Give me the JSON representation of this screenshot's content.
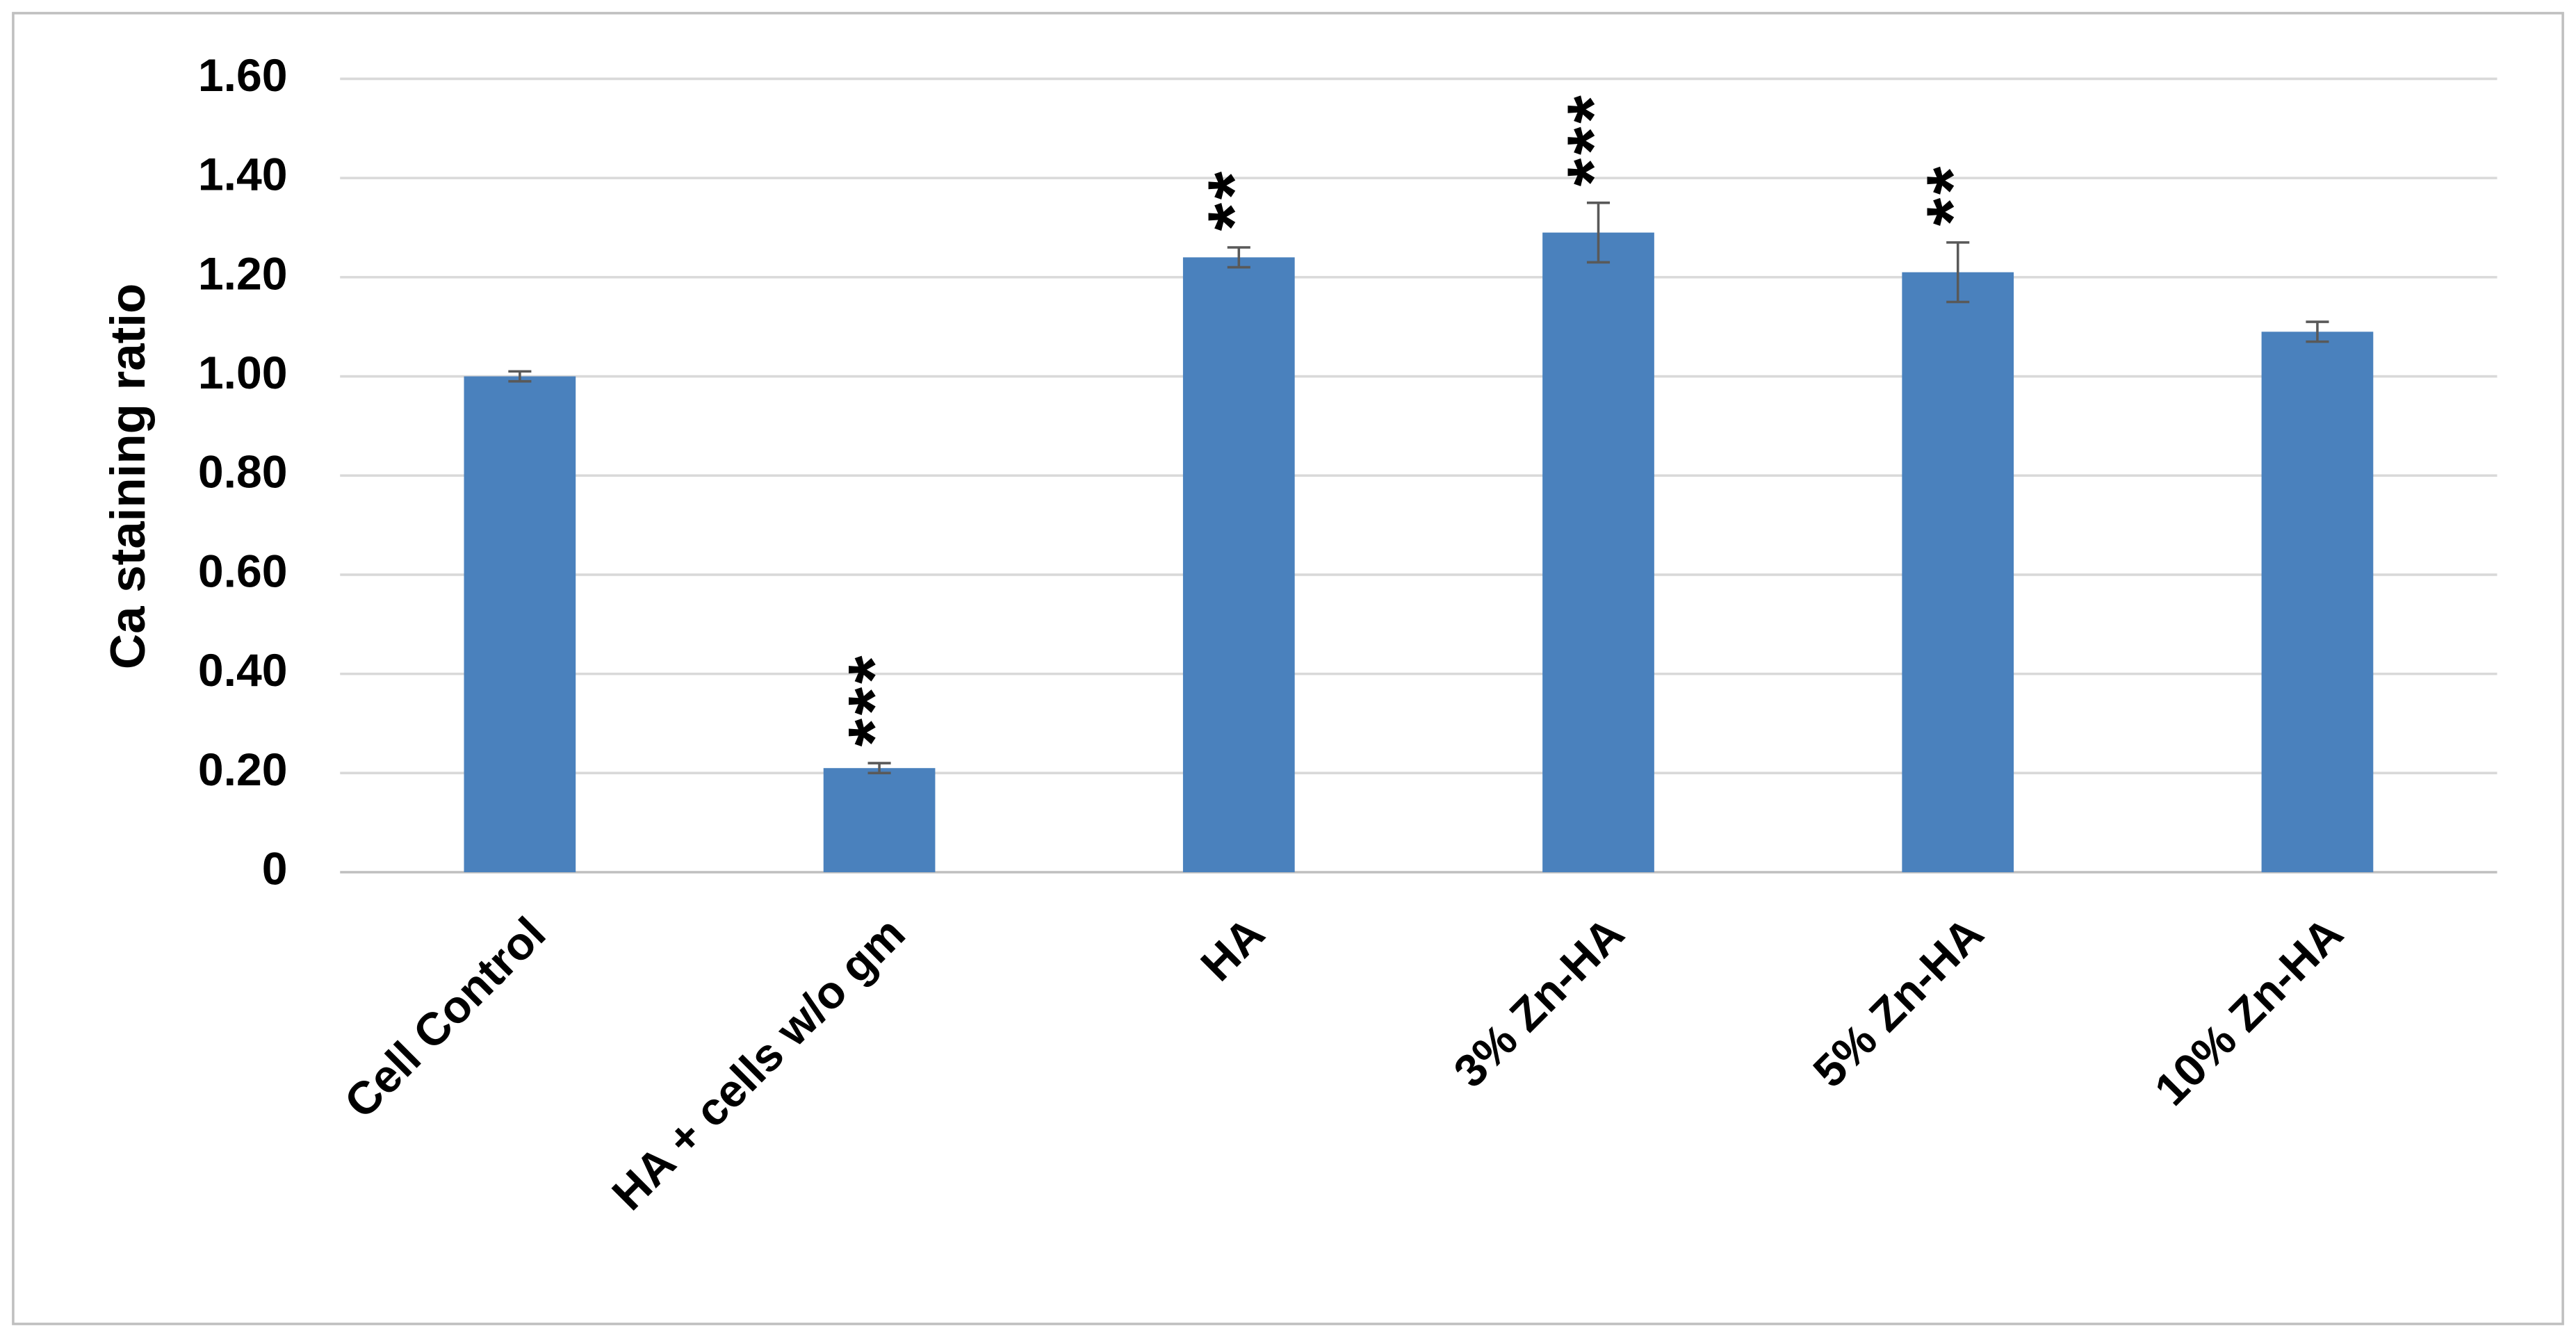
{
  "chart_data": {
    "type": "bar",
    "y_label": "Ca staining ratio",
    "categories": [
      "Cell Control",
      "HA + cells w/o gm",
      "HA",
      "3% Zn-HA",
      "5% Zn-HA",
      "10% Zn-HA"
    ],
    "values": [
      1.0,
      0.21,
      1.24,
      1.29,
      1.21,
      1.09
    ],
    "errors": [
      0.01,
      0.01,
      0.02,
      0.06,
      0.06,
      0.02
    ],
    "color": "#4a81bd",
    "ylim": [
      0,
      1.6
    ],
    "yticks": [
      0,
      {
        "value": 0.2,
        "label": "0.20"
      },
      {
        "value": 0.4,
        "label": "0.40"
      },
      {
        "value": 0.6,
        "label": "0.60"
      },
      {
        "value": 0.8,
        "label": "0.80"
      },
      {
        "value": 1.0,
        "label": "1.00"
      },
      {
        "value": 1.2,
        "label": "1.20"
      },
      {
        "value": 1.4,
        "label": "1.40"
      },
      {
        "value": 1.6,
        "label": "1.60"
      }
    ],
    "grid": true,
    "annotations": [
      {
        "text": "***",
        "category": 1
      },
      {
        "text": "**",
        "category": 2
      },
      {
        "text": "***",
        "category": 3
      },
      {
        "text": "**",
        "category": 4
      }
    ]
  }
}
